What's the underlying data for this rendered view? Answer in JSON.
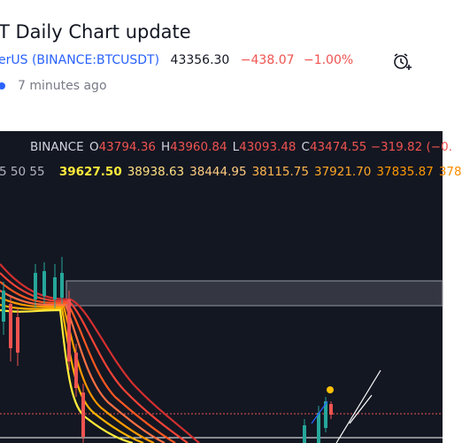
{
  "header": {
    "title": "T Daily Chart update",
    "author": "erUS",
    "symbol": "(BINANCE:BTCUSDT)",
    "price": "43356.30",
    "change": "−438.07",
    "change_pct": "−1.00%",
    "time": "7 minutes ago"
  },
  "chart_header": {
    "exchange": "BINANCE",
    "ohlc": [
      {
        "label": "O",
        "value": "43794.36"
      },
      {
        "label": "H",
        "value": "43960.84"
      },
      {
        "label": "L",
        "value": "43093.48"
      },
      {
        "label": "C",
        "value": "43474.55"
      }
    ],
    "change": "−319.82 (−0.",
    "indicator_params": "5 50 55",
    "indicator_values": [
      "39627.50",
      "38938.63",
      "38444.95",
      "38115.75",
      "37921.70",
      "37835.87",
      "378"
    ]
  }
}
